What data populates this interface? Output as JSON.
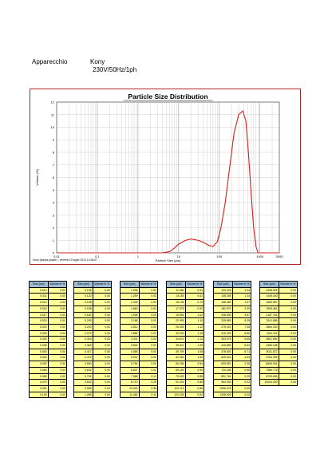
{
  "header": {
    "label": "Apparecchio",
    "model": "Kony",
    "spec": "230V/50Hz/1ph"
  },
  "chart_data": {
    "type": "line",
    "title": "Particle Size Distribution",
    "xlabel": "Particle Size (µm)",
    "ylabel": "Volume (%)",
    "footer": "Kony (wasps player) - venerdi 19 luglio 2013 14:36:07",
    "xscale": "log",
    "xlim": [
      0.01,
      3000
    ],
    "ylim": [
      0,
      12
    ],
    "grid": true,
    "x_ticks": [
      "0.01",
      "0.1",
      "1",
      "10",
      "100",
      "1000",
      "3000"
    ],
    "y_ticks": [
      "0",
      "1",
      "2",
      "3",
      "4",
      "5",
      "6",
      "7",
      "8",
      "9",
      "10",
      "11",
      "12"
    ],
    "series": [
      {
        "color": "#d42020",
        "x": [
          0.01,
          1.0,
          4.0,
          6.0,
          8.0,
          10.0,
          15.0,
          20.0,
          30.0,
          40.0,
          55.0,
          70.0,
          90.0,
          110.0,
          140.0,
          180.0,
          230.0,
          300.0,
          380.0,
          450.0,
          520.0,
          600.0,
          700.0,
          800.0,
          900.0,
          1000.0,
          3000.0
        ],
        "y": [
          0,
          0,
          0,
          0.1,
          0.4,
          0.7,
          1.0,
          1.1,
          1.0,
          0.85,
          0.6,
          0.5,
          0.9,
          2.0,
          4.0,
          6.8,
          9.5,
          11.0,
          11.3,
          10.5,
          8.0,
          5.0,
          2.0,
          0.5,
          0,
          0,
          0
        ]
      }
    ]
  },
  "tables": [
    {
      "headers": [
        "Size (µm)",
        "Volume In %"
      ],
      "rows": [
        [
          "0.010",
          "0.00"
        ],
        [
          "0.011",
          "0.00"
        ],
        [
          "0.013",
          "0.00"
        ],
        [
          "0.015",
          "0.00"
        ],
        [
          "0.017",
          "0.00"
        ],
        [
          "0.020",
          "0.00"
        ],
        [
          "0.023",
          "0.00"
        ],
        [
          "0.026",
          "0.00"
        ],
        [
          "0.030",
          "0.00"
        ],
        [
          "0.035",
          "0.00"
        ],
        [
          "0.040",
          "0.00"
        ],
        [
          "0.046",
          "0.00"
        ],
        [
          "0.052",
          "0.00"
        ],
        [
          "0.060",
          "0.00"
        ],
        [
          "0.069",
          "0.00"
        ],
        [
          "0.079",
          "0.00"
        ],
        [
          "0.091",
          "0.00"
        ],
        [
          "0.105",
          "0.00"
        ]
      ]
    },
    {
      "headers": [
        "Size (µm)",
        "Volume In %"
      ],
      "rows": [
        [
          "0.105",
          "0.00"
        ],
        [
          "0.120",
          "0.00"
        ],
        [
          "0.138",
          "0.00"
        ],
        [
          "0.158",
          "0.00"
        ],
        [
          "0.182",
          "0.00"
        ],
        [
          "0.209",
          "0.00"
        ],
        [
          "0.240",
          "0.00"
        ],
        [
          "0.275",
          "0.00"
        ],
        [
          "0.316",
          "0.00"
        ],
        [
          "0.363",
          "0.00"
        ],
        [
          "0.417",
          "0.00"
        ],
        [
          "0.479",
          "0.00"
        ],
        [
          "0.550",
          "0.00"
        ],
        [
          "0.631",
          "0.00"
        ],
        [
          "0.724",
          "0.00"
        ],
        [
          "0.832",
          "0.00"
        ],
        [
          "0.955",
          "0.00"
        ],
        [
          "1.096",
          "0.00"
        ]
      ]
    },
    {
      "headers": [
        "Size (µm)",
        "Volume In %"
      ],
      "rows": [
        [
          "1.096",
          "0.00"
        ],
        [
          "1.259",
          "0.00"
        ],
        [
          "1.445",
          "0.00"
        ],
        [
          "1.660",
          "0.00"
        ],
        [
          "1.905",
          "0.00"
        ],
        [
          "2.188",
          "0.00"
        ],
        [
          "2.512",
          "0.00"
        ],
        [
          "2.884",
          "0.00"
        ],
        [
          "3.311",
          "0.00"
        ],
        [
          "3.802",
          "0.00"
        ],
        [
          "4.365",
          "0.00"
        ],
        [
          "5.012",
          "0.00"
        ],
        [
          "5.754",
          "0.00"
        ],
        [
          "6.607",
          "0.02"
        ],
        [
          "7.586",
          "0.10"
        ],
        [
          "8.710",
          "0.26"
        ],
        [
          "10.000",
          "0.38"
        ],
        [
          "11.482",
          "0.44"
        ]
      ]
    },
    {
      "headers": [
        "Size (µm)",
        "Volume In %"
      ],
      "rows": [
        [
          "11.482",
          "0.51"
        ],
        [
          "13.183",
          "0.61"
        ],
        [
          "15.136",
          "0.79"
        ],
        [
          "17.378",
          "0.92"
        ],
        [
          "19.953",
          "1.02"
        ],
        [
          "22.909",
          "1.10"
        ],
        [
          "26.303",
          "1.12"
        ],
        [
          "30.200",
          "1.15"
        ],
        [
          "34.674",
          "1.12"
        ],
        [
          "39.811",
          "1.09"
        ],
        [
          "45.709",
          "1.05"
        ],
        [
          "52.481",
          "1.00"
        ],
        [
          "60.256",
          "0.94"
        ],
        [
          "69.183",
          "0.90"
        ],
        [
          "79.433",
          "0.88"
        ],
        [
          "91.201",
          "0.85"
        ],
        [
          "104.713",
          "0.86"
        ],
        [
          "120.226",
          "0.92"
        ]
      ]
    },
    {
      "headers": [
        "Size (µm)",
        "Volume In %"
      ],
      "rows": [
        [
          "120.226",
          "1.04"
        ],
        [
          "138.038",
          "1.34"
        ],
        [
          "158.489",
          "1.67"
        ],
        [
          "181.970",
          "2.39"
        ],
        [
          "208.930",
          "3.67"
        ],
        [
          "239.883",
          "5.25"
        ],
        [
          "275.423",
          "7.05"
        ],
        [
          "316.228",
          "8.85"
        ],
        [
          "363.078",
          "9.65"
        ],
        [
          "416.869",
          "8.62"
        ],
        [
          "478.630",
          "6.71"
        ],
        [
          "549.541",
          "4.53"
        ],
        [
          "630.957",
          "2.36"
        ],
        [
          "724.436",
          "0.98"
        ],
        [
          "831.764",
          "0.29"
        ],
        [
          "954.993",
          "0.02"
        ],
        [
          "1096.478",
          "0.00"
        ],
        [
          "1258.925",
          "0.00"
        ]
      ]
    },
    {
      "headers": [
        "Size (µm)",
        "Volume In %"
      ],
      "rows": [
        [
          "1258.925",
          "0.00"
        ],
        [
          "1445.440",
          "0.00"
        ],
        [
          "1659.587",
          "0.00"
        ],
        [
          "1905.461",
          "0.00"
        ],
        [
          "2187.762",
          "0.00"
        ],
        [
          "2511.886",
          "0.00"
        ],
        [
          "2884.032",
          "0.00"
        ],
        [
          "3311.311",
          "0.00"
        ],
        [
          "3801.894",
          "0.00"
        ],
        [
          "4365.158",
          "0.00"
        ],
        [
          "5011.872",
          "0.00"
        ],
        [
          "5754.399",
          "0.00"
        ],
        [
          "6606.934",
          "0.00"
        ],
        [
          "7585.776",
          "0.00"
        ],
        [
          "8709.636",
          "0.00"
        ],
        [
          "10000.000",
          "0.00"
        ]
      ]
    }
  ]
}
